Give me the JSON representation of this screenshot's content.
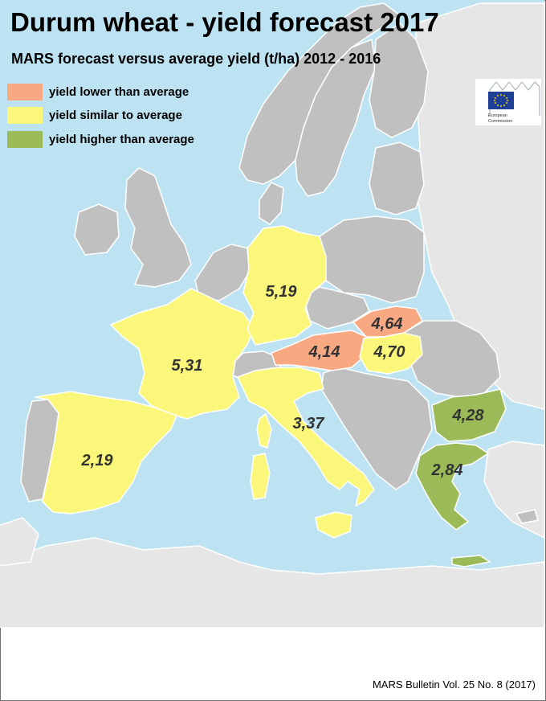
{
  "title": "Durum wheat - yield forecast 2017",
  "subtitle": "MARS forecast versus average yield (t/ha) 2012 - 2016",
  "legend": [
    {
      "label": "yield lower than average",
      "color": "#f9a982"
    },
    {
      "label": "yield similar to average",
      "color": "#fbf77a"
    },
    {
      "label": "yield higher than average",
      "color": "#9bbb59"
    }
  ],
  "logo": {
    "line1": "European",
    "line2": "Commission"
  },
  "colors": {
    "sea": "#bde3f2",
    "land_nodata": "#c0c0c0",
    "land_outside": "#e6e6e6",
    "border": "#ffffff"
  },
  "regions": [
    {
      "country": "France",
      "value": "5,31",
      "category": "similar"
    },
    {
      "country": "Germany",
      "value": "5,19",
      "category": "similar"
    },
    {
      "country": "Austria",
      "value": "4,14",
      "category": "lower"
    },
    {
      "country": "Slovakia",
      "value": "4,64",
      "category": "lower"
    },
    {
      "country": "Hungary",
      "value": "4,70",
      "category": "similar"
    },
    {
      "country": "Italy",
      "value": "3,37",
      "category": "similar"
    },
    {
      "country": "Spain",
      "value": "2,19",
      "category": "similar"
    },
    {
      "country": "Bulgaria",
      "value": "4,28",
      "category": "higher"
    },
    {
      "country": "Greece",
      "value": "2,84",
      "category": "higher"
    }
  ],
  "source": "MARS Bulletin Vol. 25 No. 8 (2017)"
}
